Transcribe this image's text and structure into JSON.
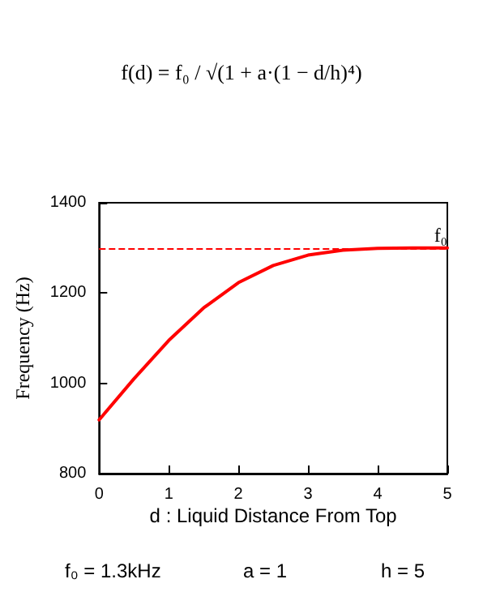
{
  "chart_data": {
    "type": "line",
    "xlabel": "d : Liquid Distance From Top",
    "ylabel": "Frequency (Hz)",
    "x": [
      0,
      0.5,
      1,
      1.5,
      2,
      2.5,
      3,
      3.5,
      4,
      4.5,
      5
    ],
    "series": [
      {
        "color": "#ff0000",
        "values": [
          919,
          1010,
          1095,
          1167,
          1223,
          1261,
          1284,
          1295,
          1299,
          1300,
          1300
        ]
      }
    ],
    "xlim": [
      0,
      5
    ],
    "xticks": [
      0,
      1,
      2,
      3,
      4,
      5
    ],
    "ylim": [
      800,
      1400
    ],
    "yticks": [
      800,
      1000,
      1200,
      1400
    ],
    "grid": false,
    "marker": "none",
    "line_style": "solid",
    "ref_lines": [
      {
        "axis": "y",
        "value": 1300,
        "label": "f₀",
        "color": "#ff0000",
        "line_style": "dashed"
      }
    ],
    "annotations": [
      "f(d) = f₀ / √(1 + a·(1 − d/h)⁴)",
      "f₀ = 1.3kHz",
      "a = 1",
      "h = 5"
    ]
  }
}
